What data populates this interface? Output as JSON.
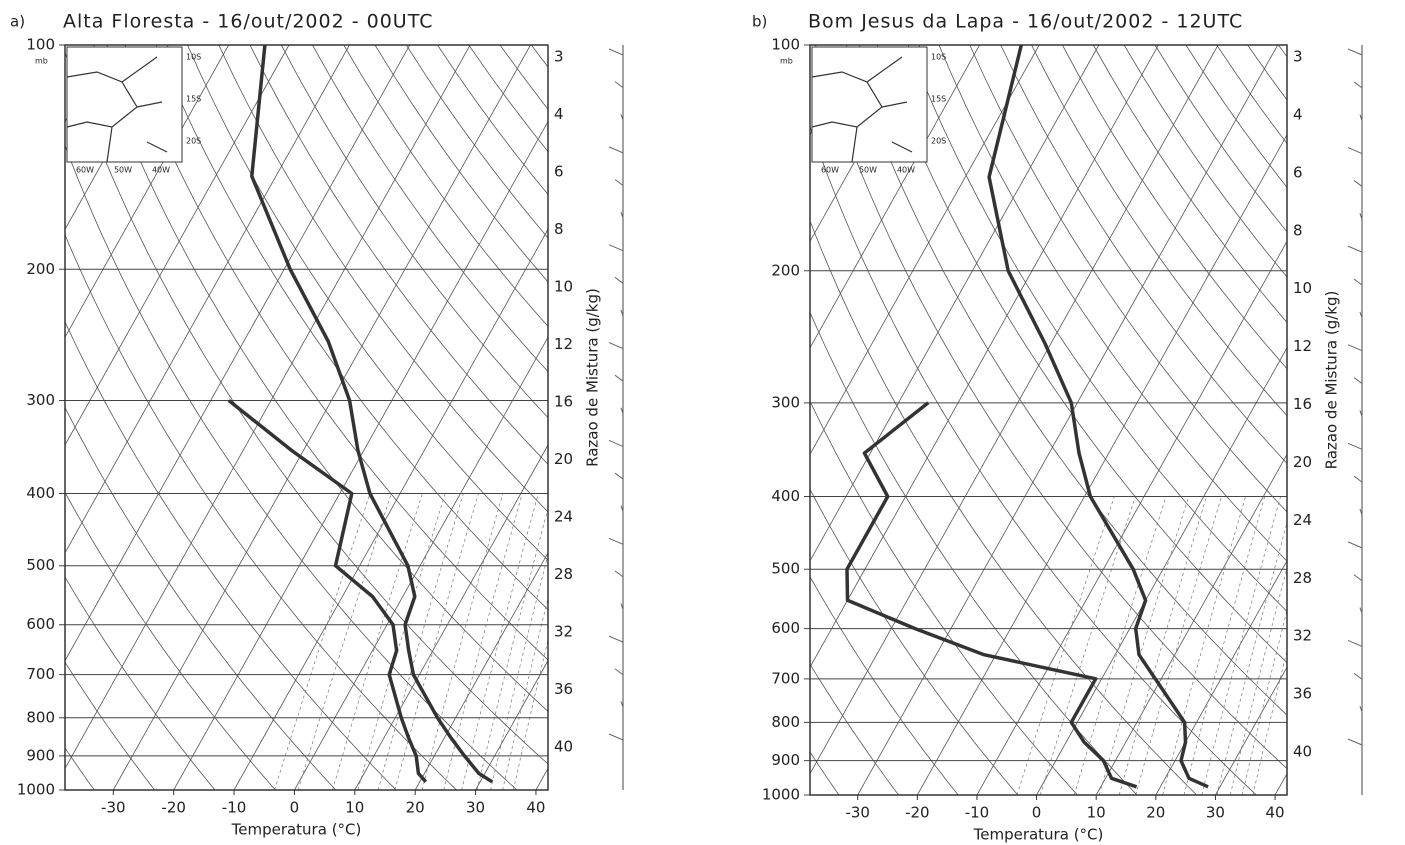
{
  "chart_data": [
    {
      "type": "skewt",
      "panel_label": "a)",
      "title": "Alta Floresta - 16/out/2002 - 00UTC",
      "xlabel": "Temperatura (°C)",
      "y_unit": "mb",
      "y2label": "Razao de Mistura (g/kg)",
      "inset_lat": [
        "10S",
        "15S",
        "20S"
      ],
      "inset_lon": [
        "60W",
        "50W",
        "40W"
      ],
      "pressure": [
        975,
        950,
        900,
        850,
        800,
        700,
        650,
        600,
        550,
        500,
        400,
        350,
        300,
        250,
        200,
        150,
        100
      ],
      "series": [
        {
          "color": "#333333",
          "values": [
            32,
            29,
            25,
            21,
            17,
            9,
            6,
            3,
            2,
            -2,
            -15,
            -21,
            -27,
            -36,
            -49,
            -64,
            -74
          ]
        },
        {
          "color": "#333333",
          "values": [
            21,
            19,
            17,
            14,
            11,
            5,
            4,
            1,
            -5,
            -14,
            -18,
            -32,
            -47,
            null,
            null,
            null,
            null
          ]
        }
      ],
      "xlim": [
        -38,
        42
      ],
      "xticks": [
        -30,
        -20,
        -10,
        0,
        10,
        20,
        30,
        40
      ],
      "ylim": [
        1000,
        100
      ],
      "yticks": [
        100,
        200,
        300,
        400,
        500,
        600,
        700,
        800,
        900,
        1000
      ],
      "log_y": true,
      "mixing_ratios": [
        3,
        4,
        6,
        8,
        10,
        12,
        16,
        20,
        24,
        28,
        32,
        36,
        40
      ]
    },
    {
      "type": "skewt",
      "panel_label": "b)",
      "title": "Bom Jesus da Lapa - 16/out/2002 - 12UTC",
      "xlabel": "Temperatura (°C)",
      "y_unit": "mb",
      "y2label": "Razao de Mistura (g/kg)",
      "inset_lat": [
        "10S",
        "15S",
        "20S"
      ],
      "inset_lon": [
        "60W",
        "50W",
        "40W"
      ],
      "pressure": [
        975,
        950,
        900,
        850,
        800,
        700,
        650,
        600,
        550,
        500,
        400,
        350,
        300,
        250,
        200,
        150,
        100
      ],
      "series": [
        {
          "color": "#333333",
          "values": [
            28,
            24,
            21,
            20,
            18,
            9,
            4,
            1,
            0,
            -5,
            -19,
            -25,
            -31,
            -41,
            -54,
            -66,
            -73
          ]
        },
        {
          "color": "#333333",
          "values": [
            16,
            11,
            8,
            3,
            -1,
            -1,
            -22,
            -36,
            -50,
            -53,
            -53,
            -61,
            -55,
            null,
            null,
            null,
            null
          ]
        }
      ],
      "xlim": [
        -38,
        42
      ],
      "xticks": [
        -30,
        -20,
        -10,
        0,
        10,
        20,
        30,
        40
      ],
      "ylim": [
        1000,
        100
      ],
      "yticks": [
        100,
        200,
        300,
        400,
        500,
        600,
        700,
        800,
        900,
        1000
      ],
      "log_y": true,
      "mixing_ratios": [
        3,
        4,
        6,
        8,
        10,
        12,
        16,
        20,
        24,
        28,
        32,
        36,
        40
      ]
    }
  ]
}
